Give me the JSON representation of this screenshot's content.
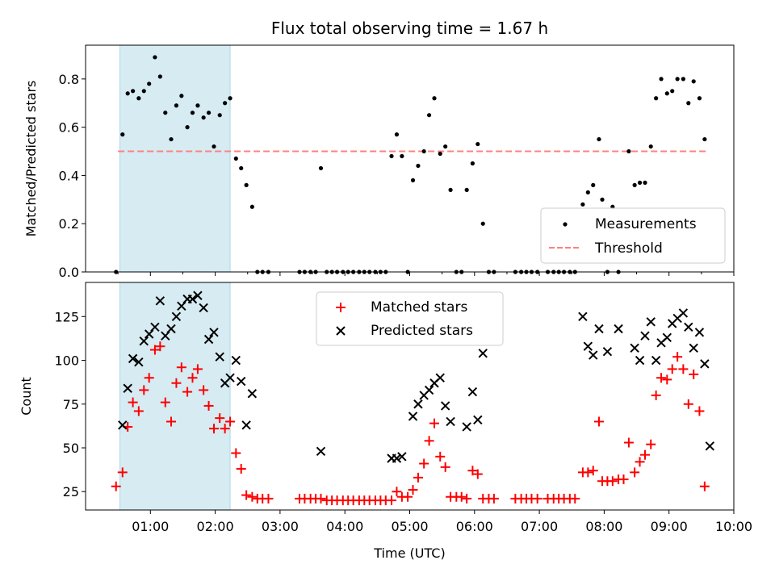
{
  "chart_data": [
    {
      "type": "scatter",
      "title": "Flux total observing time = 1.67 h",
      "ylabel": "Matched/Predicted stars",
      "xlabel": "",
      "xlim": [
        0.0,
        10.0
      ],
      "ylim": [
        0.0,
        0.94
      ],
      "yticks": [
        0.0,
        0.2,
        0.4,
        0.6,
        0.8
      ],
      "ytick_labels": [
        "0.0",
        "0.2",
        "0.4",
        "0.6",
        "0.8"
      ],
      "shaded_span": [
        0.53,
        2.23
      ],
      "shaded_color": "#add8e6",
      "legend_position": "lower right",
      "threshold": {
        "name": "Threshold",
        "value": 0.5,
        "x_range": [
          0.5,
          9.58
        ],
        "color": "#ff8080"
      },
      "series": [
        {
          "name": "Measurements",
          "marker": "dot",
          "color": "#000000",
          "points": [
            [
              0.47,
              0.0
            ],
            [
              0.57,
              0.57
            ],
            [
              0.65,
              0.74
            ],
            [
              0.73,
              0.75
            ],
            [
              0.82,
              0.72
            ],
            [
              0.9,
              0.75
            ],
            [
              0.98,
              0.78
            ],
            [
              1.07,
              0.89
            ],
            [
              1.15,
              0.81
            ],
            [
              1.23,
              0.66
            ],
            [
              1.32,
              0.55
            ],
            [
              1.4,
              0.69
            ],
            [
              1.48,
              0.73
            ],
            [
              1.57,
              0.6
            ],
            [
              1.65,
              0.66
            ],
            [
              1.73,
              0.69
            ],
            [
              1.82,
              0.64
            ],
            [
              1.9,
              0.66
            ],
            [
              1.98,
              0.52
            ],
            [
              2.07,
              0.65
            ],
            [
              2.15,
              0.7
            ],
            [
              2.23,
              0.72
            ],
            [
              2.32,
              0.47
            ],
            [
              2.4,
              0.43
            ],
            [
              2.48,
              0.36
            ],
            [
              2.57,
              0.27
            ],
            [
              2.65,
              0.0
            ],
            [
              2.73,
              0.0
            ],
            [
              2.82,
              0.0
            ],
            [
              3.3,
              0.0
            ],
            [
              3.38,
              0.0
            ],
            [
              3.47,
              0.0
            ],
            [
              3.55,
              0.0
            ],
            [
              3.63,
              0.43
            ],
            [
              3.72,
              0.0
            ],
            [
              3.8,
              0.0
            ],
            [
              3.88,
              0.0
            ],
            [
              3.97,
              0.0
            ],
            [
              4.05,
              0.0
            ],
            [
              4.13,
              0.0
            ],
            [
              4.22,
              0.0
            ],
            [
              4.3,
              0.0
            ],
            [
              4.38,
              0.0
            ],
            [
              4.47,
              0.0
            ],
            [
              4.55,
              0.0
            ],
            [
              4.63,
              0.0
            ],
            [
              4.72,
              0.48
            ],
            [
              4.8,
              0.57
            ],
            [
              4.88,
              0.48
            ],
            [
              4.97,
              0.0
            ],
            [
              5.05,
              0.38
            ],
            [
              5.13,
              0.44
            ],
            [
              5.22,
              0.5
            ],
            [
              5.3,
              0.65
            ],
            [
              5.38,
              0.72
            ],
            [
              5.47,
              0.49
            ],
            [
              5.55,
              0.52
            ],
            [
              5.63,
              0.34
            ],
            [
              5.72,
              0.0
            ],
            [
              5.8,
              0.0
            ],
            [
              5.88,
              0.34
            ],
            [
              5.97,
              0.45
            ],
            [
              6.05,
              0.53
            ],
            [
              6.13,
              0.2
            ],
            [
              6.22,
              0.0
            ],
            [
              6.3,
              0.0
            ],
            [
              6.63,
              0.0
            ],
            [
              6.72,
              0.0
            ],
            [
              6.8,
              0.0
            ],
            [
              6.88,
              0.0
            ],
            [
              6.97,
              0.0
            ],
            [
              7.13,
              0.0
            ],
            [
              7.22,
              0.0
            ],
            [
              7.3,
              0.0
            ],
            [
              7.38,
              0.0
            ],
            [
              7.47,
              0.0
            ],
            [
              7.55,
              0.0
            ],
            [
              7.67,
              0.28
            ],
            [
              7.75,
              0.33
            ],
            [
              7.83,
              0.36
            ],
            [
              7.92,
              0.55
            ],
            [
              7.97,
              0.3
            ],
            [
              8.05,
              0.0
            ],
            [
              8.13,
              0.27
            ],
            [
              8.22,
              0.0
            ],
            [
              8.38,
              0.5
            ],
            [
              8.47,
              0.36
            ],
            [
              8.55,
              0.37
            ],
            [
              8.63,
              0.37
            ],
            [
              8.72,
              0.52
            ],
            [
              8.8,
              0.72
            ],
            [
              8.88,
              0.8
            ],
            [
              8.97,
              0.74
            ],
            [
              9.05,
              0.75
            ],
            [
              9.13,
              0.8
            ],
            [
              9.22,
              0.8
            ],
            [
              9.3,
              0.7
            ],
            [
              9.38,
              0.79
            ],
            [
              9.47,
              0.72
            ],
            [
              9.55,
              0.55
            ]
          ]
        }
      ]
    },
    {
      "type": "scatter",
      "title": "",
      "xlabel": "Time (UTC)",
      "ylabel": "Count",
      "xlim": [
        0.0,
        10.0
      ],
      "ylim": [
        14.5,
        144.5
      ],
      "xticks": [
        1,
        2,
        3,
        4,
        5,
        6,
        7,
        8,
        9,
        10
      ],
      "xtick_labels": [
        "01:00",
        "02:00",
        "03:00",
        "04:00",
        "05:00",
        "06:00",
        "07:00",
        "08:00",
        "09:00",
        "10:00"
      ],
      "yticks": [
        25,
        50,
        75,
        100,
        125
      ],
      "ytick_labels": [
        "25",
        "50",
        "75",
        "100",
        "125"
      ],
      "shaded_span": [
        0.53,
        2.23
      ],
      "shaded_color": "#add8e6",
      "legend_position": "upper center",
      "series": [
        {
          "name": "Matched stars",
          "marker": "plus",
          "color": "#ff0000",
          "points": [
            [
              0.47,
              28
            ],
            [
              0.57,
              36
            ],
            [
              0.65,
              62
            ],
            [
              0.73,
              76
            ],
            [
              0.82,
              71
            ],
            [
              0.9,
              83
            ],
            [
              0.98,
              90
            ],
            [
              1.07,
              106
            ],
            [
              1.15,
              108
            ],
            [
              1.23,
              76
            ],
            [
              1.32,
              65
            ],
            [
              1.4,
              87
            ],
            [
              1.48,
              96
            ],
            [
              1.57,
              82
            ],
            [
              1.65,
              90
            ],
            [
              1.73,
              95
            ],
            [
              1.82,
              83
            ],
            [
              1.9,
              74
            ],
            [
              1.98,
              61
            ],
            [
              2.07,
              67
            ],
            [
              2.15,
              61
            ],
            [
              2.23,
              65
            ],
            [
              2.32,
              47
            ],
            [
              2.4,
              38
            ],
            [
              2.48,
              23
            ],
            [
              2.57,
              22
            ],
            [
              2.65,
              21
            ],
            [
              2.73,
              21
            ],
            [
              2.82,
              21
            ],
            [
              3.3,
              21
            ],
            [
              3.38,
              21
            ],
            [
              3.47,
              21
            ],
            [
              3.55,
              21
            ],
            [
              3.63,
              21
            ],
            [
              3.72,
              20
            ],
            [
              3.8,
              20
            ],
            [
              3.88,
              20
            ],
            [
              3.97,
              20
            ],
            [
              4.05,
              20
            ],
            [
              4.13,
              20
            ],
            [
              4.22,
              20
            ],
            [
              4.3,
              20
            ],
            [
              4.38,
              20
            ],
            [
              4.47,
              20
            ],
            [
              4.55,
              20
            ],
            [
              4.63,
              20
            ],
            [
              4.72,
              20
            ],
            [
              4.8,
              25
            ],
            [
              4.88,
              22
            ],
            [
              4.97,
              22
            ],
            [
              5.05,
              26
            ],
            [
              5.13,
              33
            ],
            [
              5.22,
              41
            ],
            [
              5.3,
              54
            ],
            [
              5.38,
              64
            ],
            [
              5.47,
              45
            ],
            [
              5.55,
              39
            ],
            [
              5.63,
              22
            ],
            [
              5.72,
              22
            ],
            [
              5.8,
              22
            ],
            [
              5.88,
              21
            ],
            [
              5.97,
              37
            ],
            [
              6.05,
              35
            ],
            [
              6.13,
              21
            ],
            [
              6.22,
              21
            ],
            [
              6.3,
              21
            ],
            [
              6.63,
              21
            ],
            [
              6.72,
              21
            ],
            [
              6.8,
              21
            ],
            [
              6.88,
              21
            ],
            [
              6.97,
              21
            ],
            [
              7.13,
              21
            ],
            [
              7.22,
              21
            ],
            [
              7.3,
              21
            ],
            [
              7.38,
              21
            ],
            [
              7.47,
              21
            ],
            [
              7.55,
              21
            ],
            [
              7.67,
              36
            ],
            [
              7.75,
              36
            ],
            [
              7.83,
              37
            ],
            [
              7.92,
              65
            ],
            [
              7.97,
              31
            ],
            [
              8.05,
              31
            ],
            [
              8.13,
              31
            ],
            [
              8.22,
              32
            ],
            [
              8.3,
              32
            ],
            [
              8.38,
              53
            ],
            [
              8.47,
              36
            ],
            [
              8.55,
              42
            ],
            [
              8.63,
              46
            ],
            [
              8.72,
              52
            ],
            [
              8.8,
              80
            ],
            [
              8.88,
              90
            ],
            [
              8.97,
              89
            ],
            [
              9.05,
              95
            ],
            [
              9.13,
              102
            ],
            [
              9.22,
              95
            ],
            [
              9.3,
              75
            ],
            [
              9.38,
              92
            ],
            [
              9.47,
              71
            ],
            [
              9.55,
              28
            ]
          ]
        },
        {
          "name": "Predicted stars",
          "marker": "x",
          "color": "#000000",
          "points": [
            [
              0.57,
              63
            ],
            [
              0.65,
              84
            ],
            [
              0.73,
              101
            ],
            [
              0.82,
              99
            ],
            [
              0.9,
              111
            ],
            [
              0.98,
              115
            ],
            [
              1.07,
              119
            ],
            [
              1.15,
              134
            ],
            [
              1.23,
              114
            ],
            [
              1.32,
              118
            ],
            [
              1.4,
              125
            ],
            [
              1.48,
              131
            ],
            [
              1.57,
              135
            ],
            [
              1.65,
              135
            ],
            [
              1.73,
              137
            ],
            [
              1.82,
              130
            ],
            [
              1.9,
              112
            ],
            [
              1.98,
              116
            ],
            [
              2.07,
              102
            ],
            [
              2.15,
              87
            ],
            [
              2.23,
              90
            ],
            [
              2.32,
              100
            ],
            [
              2.4,
              88
            ],
            [
              2.48,
              63
            ],
            [
              2.57,
              81
            ],
            [
              3.63,
              48
            ],
            [
              4.72,
              44
            ],
            [
              4.8,
              44
            ],
            [
              4.88,
              45
            ],
            [
              5.05,
              68
            ],
            [
              5.13,
              75
            ],
            [
              5.22,
              80
            ],
            [
              5.3,
              83
            ],
            [
              5.38,
              87
            ],
            [
              5.47,
              90
            ],
            [
              5.55,
              74
            ],
            [
              5.63,
              65
            ],
            [
              5.88,
              62
            ],
            [
              5.97,
              82
            ],
            [
              6.05,
              66
            ],
            [
              6.13,
              104
            ],
            [
              7.67,
              125
            ],
            [
              7.75,
              108
            ],
            [
              7.83,
              103
            ],
            [
              7.92,
              118
            ],
            [
              8.05,
              105
            ],
            [
              8.22,
              118
            ],
            [
              8.47,
              107
            ],
            [
              8.55,
              100
            ],
            [
              8.63,
              114
            ],
            [
              8.72,
              122
            ],
            [
              8.8,
              100
            ],
            [
              8.88,
              110
            ],
            [
              8.97,
              113
            ],
            [
              9.05,
              121
            ],
            [
              9.13,
              124
            ],
            [
              9.22,
              127
            ],
            [
              9.3,
              119
            ],
            [
              9.38,
              107
            ],
            [
              9.47,
              116
            ],
            [
              9.55,
              98
            ],
            [
              9.63,
              51
            ]
          ]
        }
      ]
    }
  ]
}
